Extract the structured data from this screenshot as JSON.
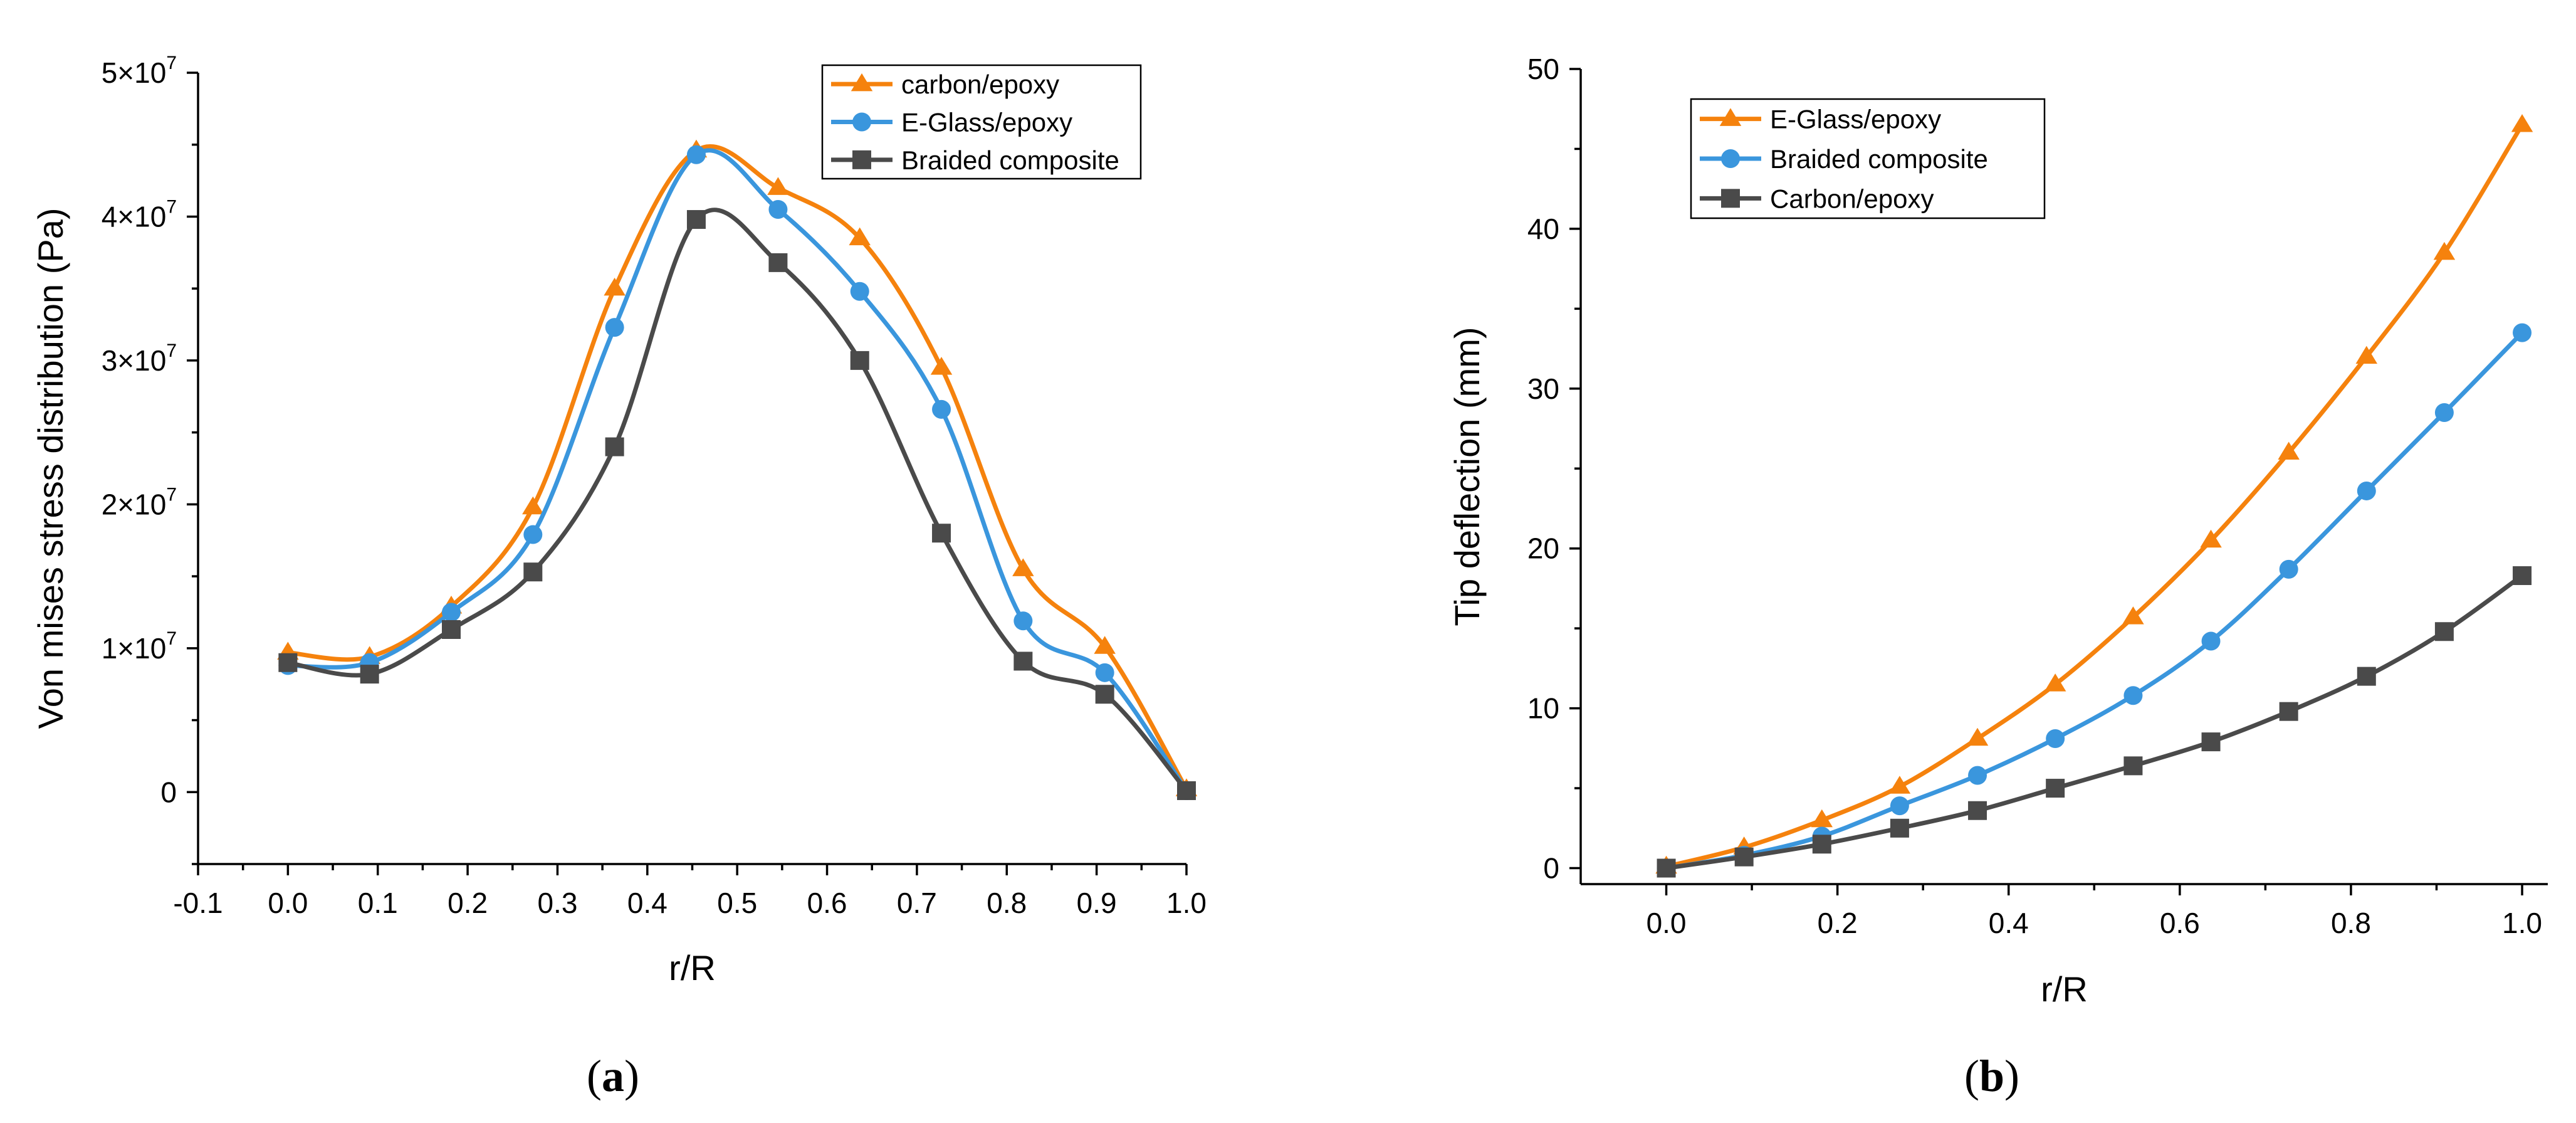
{
  "chart_data": [
    {
      "id": "a",
      "type": "line",
      "caption": "a",
      "xlabel": "r/R",
      "ylabel": "Von mises stress distribution (Pa)",
      "xlim": [
        -0.1,
        1.0
      ],
      "ylim": [
        -5000000,
        50000000
      ],
      "xticks": [
        -0.1,
        0.0,
        0.1,
        0.2,
        0.3,
        0.4,
        0.5,
        0.6,
        0.7,
        0.8,
        0.9,
        1.0
      ],
      "xtick_labels": [
        "-0.1",
        "0.0",
        "0.1",
        "0.2",
        "0.3",
        "0.4",
        "0.5",
        "0.6",
        "0.7",
        "0.8",
        "0.9",
        "1.0"
      ],
      "yticks": [
        0,
        10000000,
        20000000,
        30000000,
        40000000,
        50000000
      ],
      "ytick_labels": [
        {
          "base": "0",
          "exp": ""
        },
        {
          "base": "1×10",
          "exp": "7"
        },
        {
          "base": "2×10",
          "exp": "7"
        },
        {
          "base": "3×10",
          "exp": "7"
        },
        {
          "base": "4×10",
          "exp": "7"
        },
        {
          "base": "5×10",
          "exp": "7"
        }
      ],
      "legend_position": "top-right",
      "series": [
        {
          "name": "carbon/epoxy",
          "color": "#F5820D",
          "marker": "triangle",
          "x": [
            0.0,
            0.0909,
            0.1818,
            0.2727,
            0.3636,
            0.4545,
            0.5455,
            0.6364,
            0.7273,
            0.8182,
            0.9091,
            1.0
          ],
          "y": [
            9700000,
            9400000,
            12900000,
            19800000,
            35000000,
            44600000,
            42000000,
            38500000,
            29500000,
            15500000,
            10100000,
            200000
          ]
        },
        {
          "name": "E-Glass/epoxy",
          "color": "#3A96DD",
          "marker": "circle",
          "x": [
            0.0,
            0.0909,
            0.1818,
            0.2727,
            0.3636,
            0.4545,
            0.5455,
            0.6364,
            0.7273,
            0.8182,
            0.9091,
            1.0
          ],
          "y": [
            8800000,
            9000000,
            12500000,
            17900000,
            32300000,
            44300000,
            40500000,
            34800000,
            26600000,
            11900000,
            8300000,
            100000
          ]
        },
        {
          "name": "Braided composite",
          "color": "#4A4A4A",
          "marker": "square",
          "x": [
            0.0,
            0.0909,
            0.1818,
            0.2727,
            0.3636,
            0.4545,
            0.5455,
            0.6364,
            0.7273,
            0.8182,
            0.9091,
            1.0
          ],
          "y": [
            9000000,
            8200000,
            11300000,
            15300000,
            24000000,
            39800000,
            36800000,
            30000000,
            18000000,
            9100000,
            6800000,
            100000
          ]
        }
      ]
    },
    {
      "id": "b",
      "type": "line",
      "caption": "b",
      "xlabel": "r/R",
      "ylabel": "Tip deflection (mm)",
      "xlim": [
        -0.1,
        1.03
      ],
      "ylim": [
        -1,
        50
      ],
      "xticks": [
        0.0,
        0.2,
        0.4,
        0.6,
        0.8,
        1.0
      ],
      "xtick_labels": [
        "0.0",
        "0.2",
        "0.4",
        "0.6",
        "0.8",
        "1.0"
      ],
      "yticks": [
        0,
        10,
        20,
        30,
        40,
        50
      ],
      "ytick_labels": [
        {
          "base": "0",
          "exp": ""
        },
        {
          "base": "10",
          "exp": ""
        },
        {
          "base": "20",
          "exp": ""
        },
        {
          "base": "30",
          "exp": ""
        },
        {
          "base": "40",
          "exp": ""
        },
        {
          "base": "50",
          "exp": ""
        }
      ],
      "legend_position": "top-left",
      "series": [
        {
          "name": "E-Glass/epoxy",
          "color": "#F5820D",
          "marker": "triangle",
          "x": [
            0.0,
            0.0909,
            0.1818,
            0.2727,
            0.3636,
            0.4545,
            0.5455,
            0.6364,
            0.7273,
            0.8182,
            0.9091,
            1.0
          ],
          "y": [
            0.1,
            1.3,
            3.0,
            5.1,
            8.1,
            11.5,
            15.7,
            20.5,
            26.0,
            32.0,
            38.5,
            46.5
          ]
        },
        {
          "name": "Braided composite",
          "color": "#3A96DD",
          "marker": "circle",
          "x": [
            0.0,
            0.0909,
            0.1818,
            0.2727,
            0.3636,
            0.4545,
            0.5455,
            0.6364,
            0.7273,
            0.8182,
            0.9091,
            1.0
          ],
          "y": [
            0.0,
            0.8,
            2.0,
            3.9,
            5.8,
            8.1,
            10.8,
            14.2,
            18.7,
            23.6,
            28.5,
            33.5
          ]
        },
        {
          "name": "Carbon/epoxy",
          "color": "#4A4A4A",
          "marker": "square",
          "x": [
            0.0,
            0.0909,
            0.1818,
            0.2727,
            0.3636,
            0.4545,
            0.5455,
            0.6364,
            0.7273,
            0.8182,
            0.9091,
            1.0
          ],
          "y": [
            0.0,
            0.7,
            1.5,
            2.5,
            3.6,
            5.0,
            6.4,
            7.9,
            9.8,
            12.0,
            14.8,
            18.3
          ]
        }
      ]
    }
  ]
}
